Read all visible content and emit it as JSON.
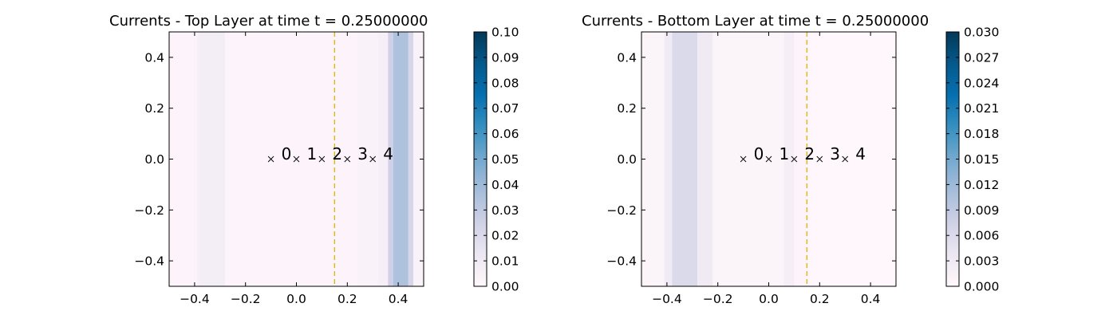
{
  "chart_data": [
    {
      "type": "heatmap",
      "title": "Currents - Top Layer at time t =     0.25000000",
      "xlim": [
        -0.5,
        0.5
      ],
      "ylim": [
        -0.5,
        0.5
      ],
      "x_ticks": [
        -0.4,
        -0.2,
        0.0,
        0.2,
        0.4
      ],
      "x_tick_labels": [
        "−0.4",
        "−0.2",
        "0.0",
        "0.2",
        "0.4"
      ],
      "y_ticks": [
        0.4,
        0.2,
        0.0,
        -0.2,
        -0.4
      ],
      "y_tick_labels": [
        "0.4",
        "0.2",
        "0.0",
        "−0.2",
        "−0.4"
      ],
      "colorbar": {
        "min": 0.0,
        "max": 0.1,
        "ticks": [
          0.0,
          0.01,
          0.02,
          0.03,
          0.04,
          0.05,
          0.06,
          0.07,
          0.08,
          0.09,
          0.1
        ],
        "tick_labels": [
          "0.00",
          "0.01",
          "0.02",
          "0.03",
          "0.04",
          "0.05",
          "0.06",
          "0.07",
          "0.08",
          "0.09",
          "0.10"
        ]
      },
      "bands": [
        {
          "x0": -0.5,
          "x1": -0.39,
          "value": 0.002
        },
        {
          "x0": -0.39,
          "x1": -0.38,
          "value": 0.006
        },
        {
          "x0": -0.38,
          "x1": -0.28,
          "value": 0.008
        },
        {
          "x0": -0.28,
          "x1": 0.24,
          "value": 0.002
        },
        {
          "x0": 0.24,
          "x1": 0.32,
          "value": 0.004
        },
        {
          "x0": 0.32,
          "x1": 0.36,
          "value": 0.006
        },
        {
          "x0": 0.36,
          "x1": 0.38,
          "value": 0.025
        },
        {
          "x0": 0.38,
          "x1": 0.44,
          "value": 0.035
        },
        {
          "x0": 0.44,
          "x1": 0.46,
          "value": 0.022
        },
        {
          "x0": 0.46,
          "x1": 0.5,
          "value": 0.004
        }
      ],
      "vline_x": 0.15,
      "vline_color": "#e8b400",
      "markers": [
        {
          "x": -0.1,
          "y": 0.0,
          "label": "0"
        },
        {
          "x": 0.0,
          "y": 0.0,
          "label": "1"
        },
        {
          "x": 0.1,
          "y": 0.0,
          "label": "2"
        },
        {
          "x": 0.2,
          "y": 0.0,
          "label": "3"
        },
        {
          "x": 0.3,
          "y": 0.0,
          "label": "4"
        }
      ]
    },
    {
      "type": "heatmap",
      "title": "Currents - Bottom Layer at time t =     0.25000000",
      "xlim": [
        -0.5,
        0.5
      ],
      "ylim": [
        -0.5,
        0.5
      ],
      "x_ticks": [
        -0.4,
        -0.2,
        0.0,
        0.2,
        0.4
      ],
      "x_tick_labels": [
        "−0.4",
        "−0.2",
        "0.0",
        "0.2",
        "0.4"
      ],
      "y_ticks": [
        0.4,
        0.2,
        0.0,
        -0.2,
        -0.4
      ],
      "y_tick_labels": [
        "0.4",
        "0.2",
        "0.0",
        "−0.2",
        "−0.4"
      ],
      "colorbar": {
        "min": 0.0,
        "max": 0.03,
        "ticks": [
          0.0,
          0.003,
          0.006,
          0.009,
          0.012,
          0.015,
          0.018,
          0.021,
          0.024,
          0.027,
          0.03
        ],
        "tick_labels": [
          "0.000",
          "0.003",
          "0.006",
          "0.009",
          "0.012",
          "0.015",
          "0.018",
          "0.021",
          "0.024",
          "0.027",
          "0.030"
        ]
      },
      "bands": [
        {
          "x0": -0.5,
          "x1": -0.41,
          "value": 0.0008
        },
        {
          "x0": -0.41,
          "x1": -0.38,
          "value": 0.003
        },
        {
          "x0": -0.38,
          "x1": -0.28,
          "value": 0.006
        },
        {
          "x0": -0.28,
          "x1": -0.22,
          "value": 0.003
        },
        {
          "x0": -0.22,
          "x1": 0.06,
          "value": 0.0008
        },
        {
          "x0": 0.06,
          "x1": 0.1,
          "value": 0.002
        },
        {
          "x0": 0.1,
          "x1": 0.16,
          "value": 0.0006
        },
        {
          "x0": 0.16,
          "x1": 0.5,
          "value": 0.0
        }
      ],
      "vline_x": 0.15,
      "vline_color": "#e8b400",
      "markers": [
        {
          "x": -0.1,
          "y": 0.0,
          "label": "0"
        },
        {
          "x": 0.0,
          "y": 0.0,
          "label": "1"
        },
        {
          "x": 0.1,
          "y": 0.0,
          "label": "2"
        },
        {
          "x": 0.2,
          "y": 0.0,
          "label": "3"
        },
        {
          "x": 0.3,
          "y": 0.0,
          "label": "4"
        }
      ]
    }
  ]
}
